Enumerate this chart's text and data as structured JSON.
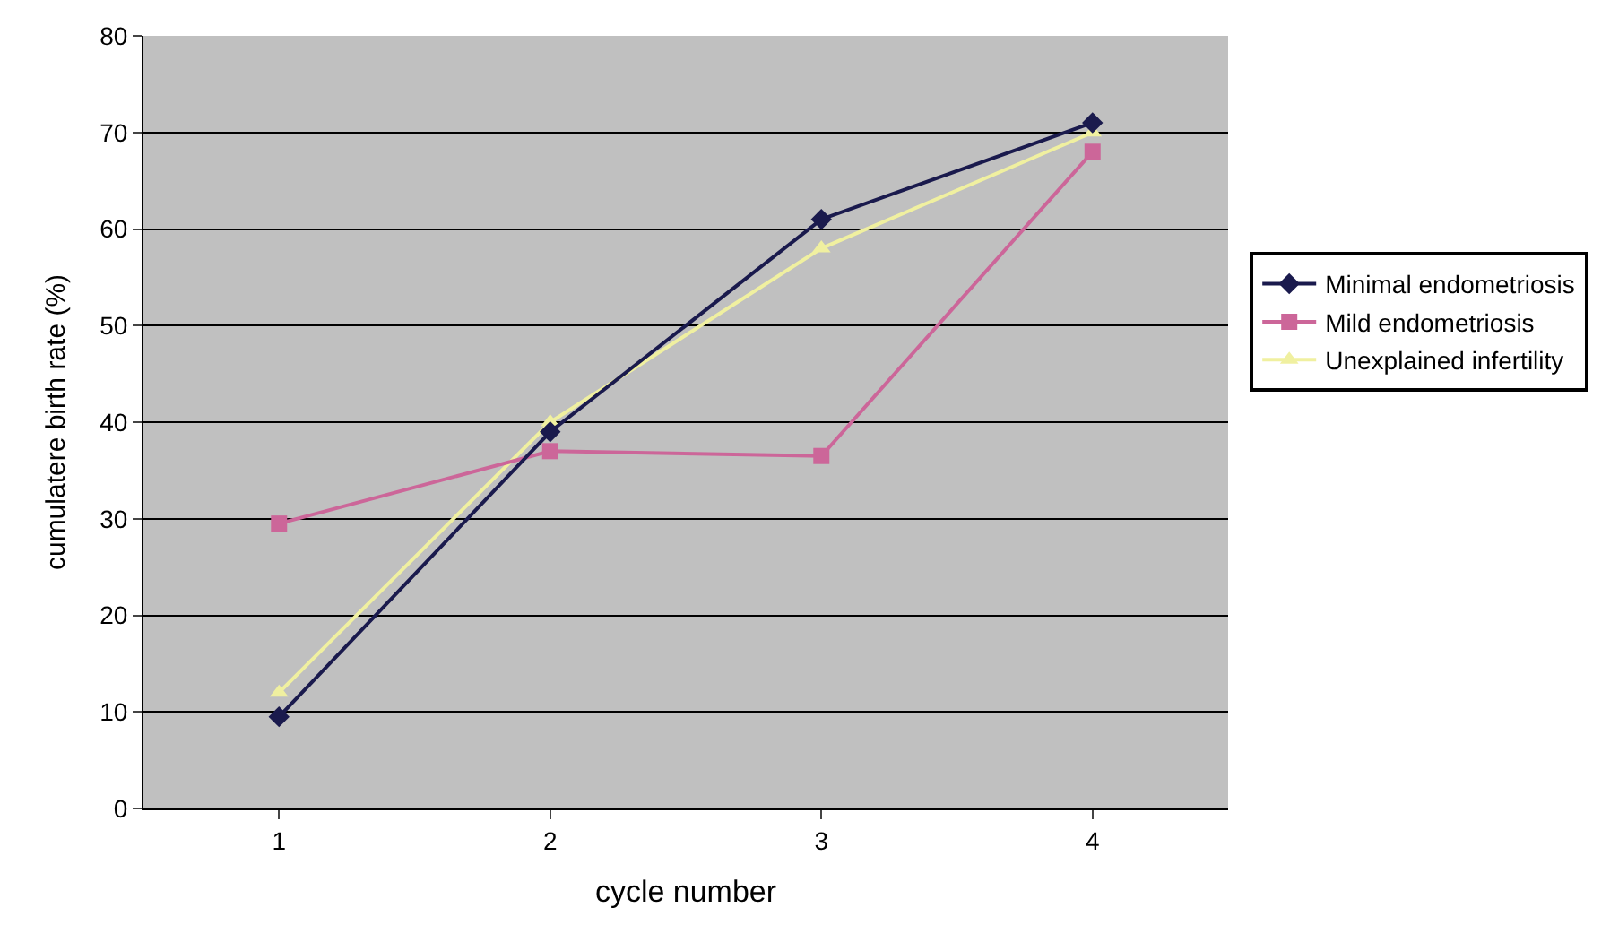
{
  "chart_data": {
    "type": "line",
    "xlabel": "cycle number",
    "ylabel": "cumulatere birth rate (%)",
    "categories": [
      "1",
      "2",
      "3",
      "4"
    ],
    "series": [
      {
        "name": "Minimal endometriosis",
        "color": "#1a1a4d",
        "marker": "diamond",
        "values": [
          9.5,
          39,
          61,
          71
        ]
      },
      {
        "name": "Mild endometriosis",
        "color": "#cc6699",
        "marker": "square",
        "values": [
          29.5,
          37,
          36.5,
          68
        ]
      },
      {
        "name": "Unexplained infertility",
        "color": "#f0f0a0",
        "marker": "triangle",
        "values": [
          12,
          40,
          58,
          70
        ]
      }
    ],
    "ylim": [
      0,
      80
    ],
    "yticks": [
      0,
      10,
      20,
      30,
      40,
      50,
      60,
      70,
      80
    ],
    "grid": "y",
    "legend": "right"
  }
}
